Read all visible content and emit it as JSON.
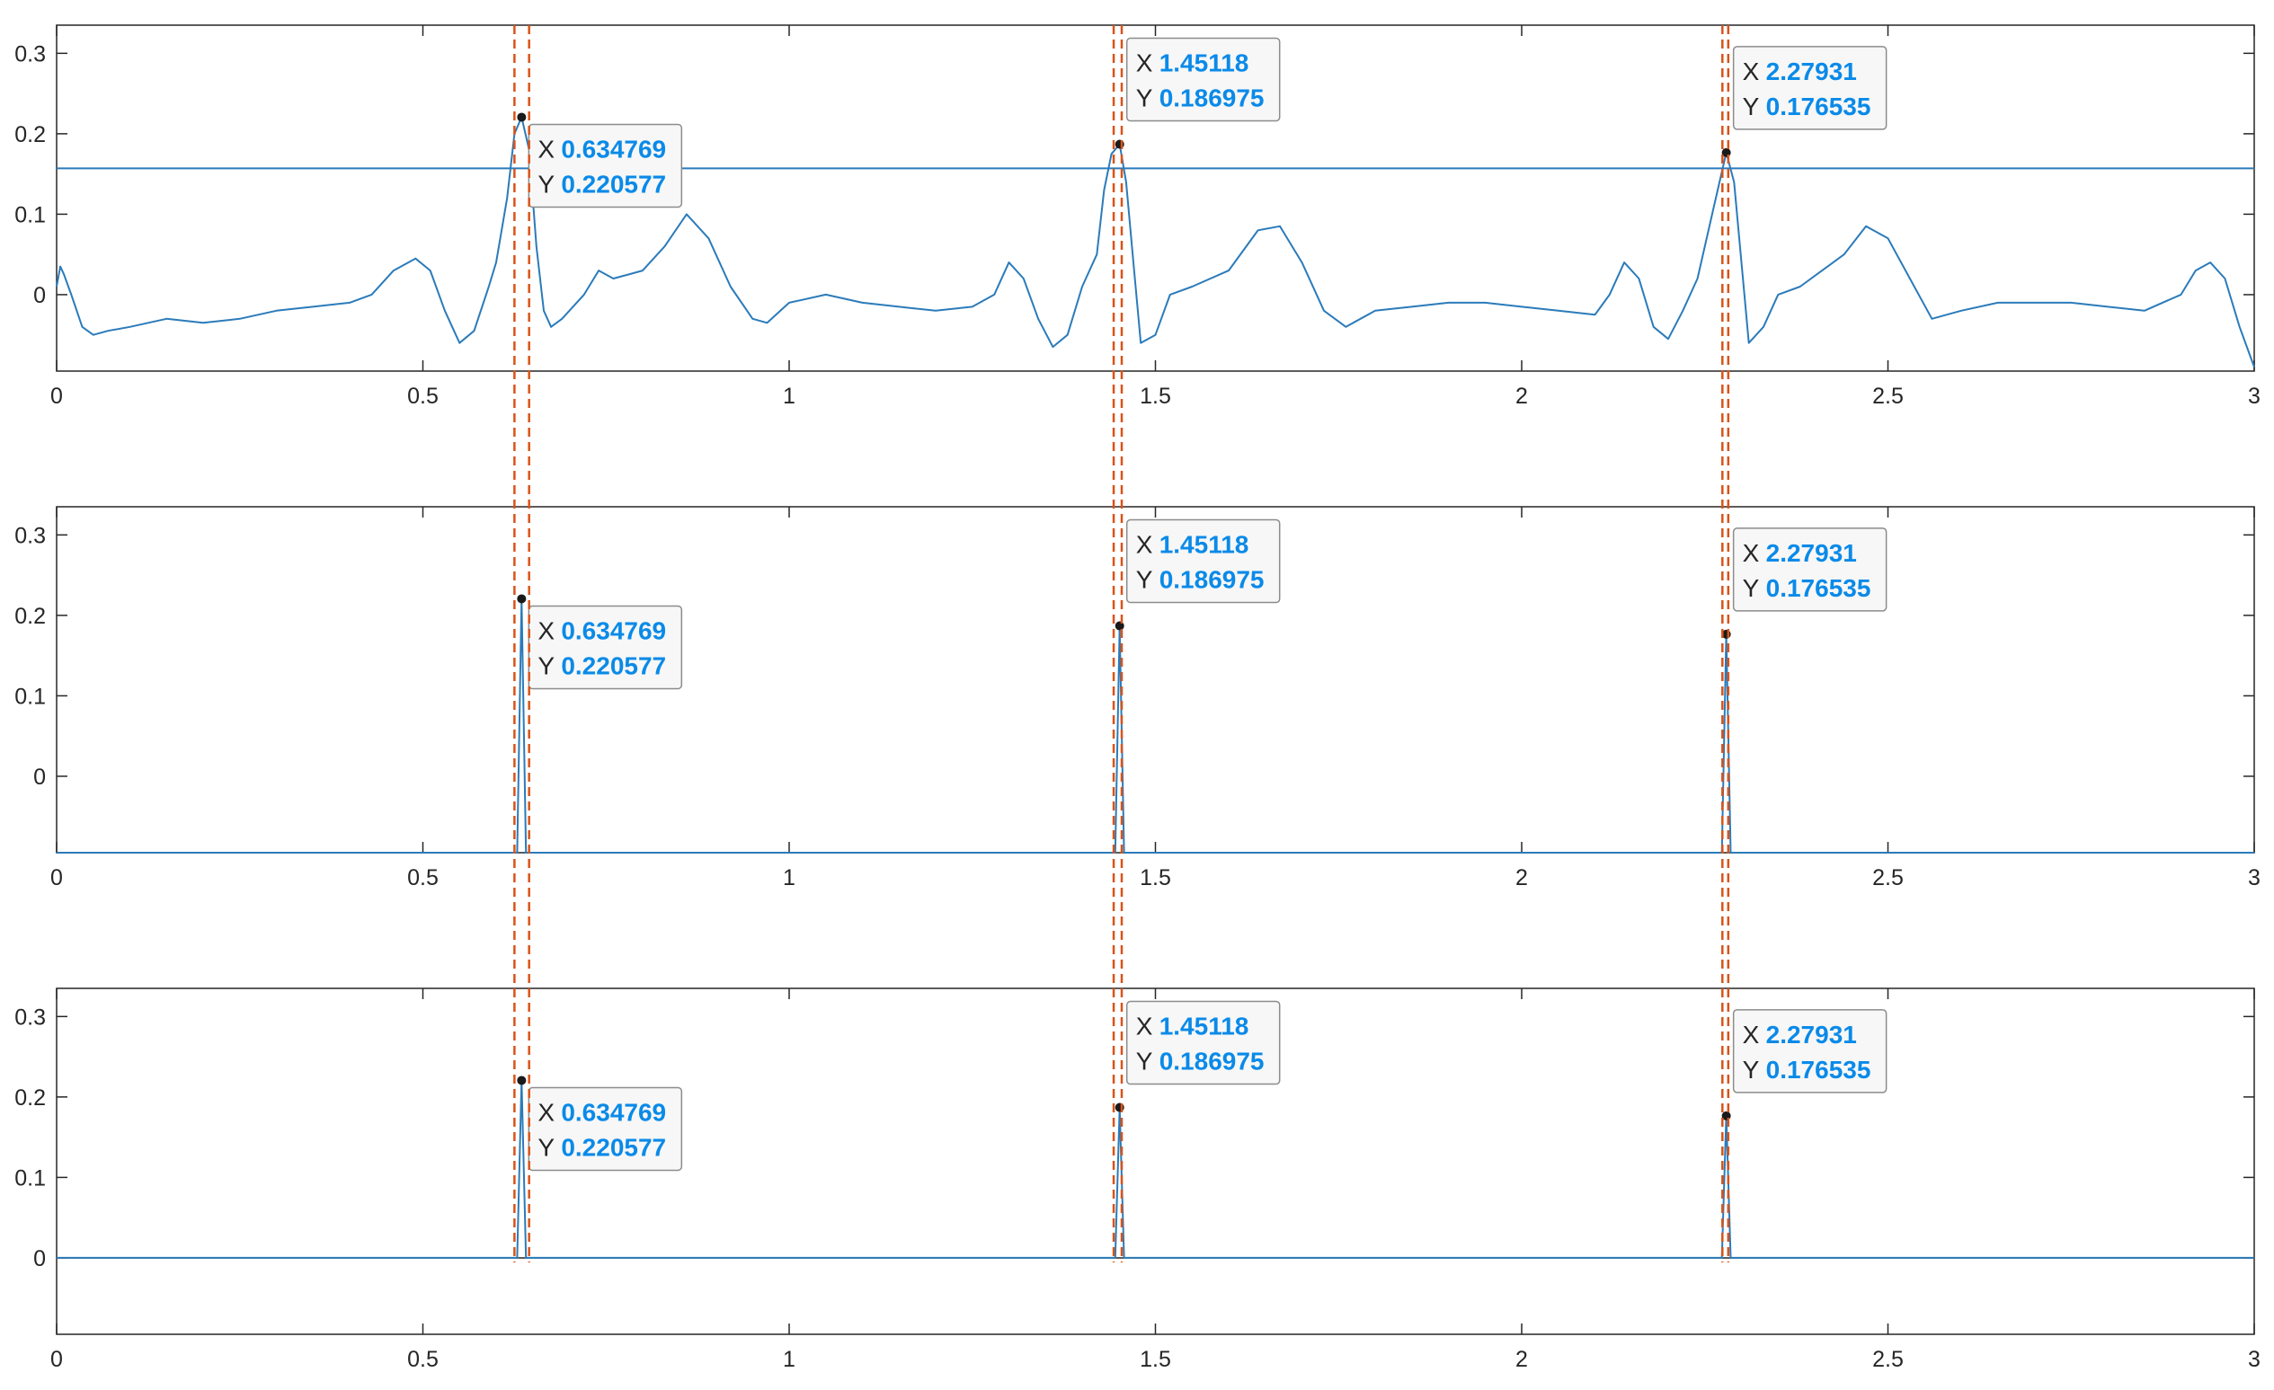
{
  "chart_data": [
    {
      "type": "line",
      "xlim": [
        0,
        3
      ],
      "ylim": [
        -0.095,
        0.335
      ],
      "xticks": [
        "0",
        "0.5",
        "1",
        "1.5",
        "2",
        "2.5",
        "3"
      ],
      "yticks": [
        "0.3",
        "0.2",
        "0.1",
        "0"
      ],
      "grid": false,
      "threshold": 0.157,
      "series_color": "#2b7bba",
      "marker_line_color": "#d95319",
      "series": [
        {
          "kind": "signal",
          "x": [
            0,
            0.005,
            0.01,
            0.02,
            0.035,
            0.05,
            0.07,
            0.1,
            0.15,
            0.2,
            0.25,
            0.3,
            0.35,
            0.4,
            0.43,
            0.46,
            0.49,
            0.51,
            0.53,
            0.55,
            0.57,
            0.59,
            0.6,
            0.615,
            0.625,
            0.634769,
            0.645,
            0.655,
            0.665,
            0.675,
            0.69,
            0.7,
            0.72,
            0.74,
            0.76,
            0.78,
            0.8,
            0.83,
            0.86,
            0.89,
            0.92,
            0.95,
            0.97,
            1.0,
            1.05,
            1.1,
            1.15,
            1.2,
            1.25,
            1.28,
            1.3,
            1.32,
            1.34,
            1.36,
            1.38,
            1.4,
            1.42,
            1.43,
            1.44,
            1.45118,
            1.46,
            1.47,
            1.48,
            1.5,
            1.52,
            1.55,
            1.6,
            1.64,
            1.67,
            1.7,
            1.73,
            1.76,
            1.8,
            1.85,
            1.9,
            1.95,
            2.0,
            2.05,
            2.1,
            2.12,
            2.14,
            2.16,
            2.18,
            2.2,
            2.22,
            2.24,
            2.26,
            2.27931,
            2.29,
            2.3,
            2.31,
            2.33,
            2.35,
            2.38,
            2.41,
            2.44,
            2.47,
            2.5,
            2.53,
            2.56,
            2.6,
            2.65,
            2.7,
            2.75,
            2.8,
            2.85,
            2.9,
            2.92,
            2.94,
            2.96,
            2.98,
            3.0
          ],
          "y": [
            0.01,
            0.035,
            0.025,
            0.0,
            -0.04,
            -0.05,
            -0.045,
            -0.04,
            -0.03,
            -0.035,
            -0.03,
            -0.02,
            -0.015,
            -0.01,
            0.0,
            0.03,
            0.045,
            0.03,
            -0.02,
            -0.06,
            -0.045,
            0.01,
            0.04,
            0.12,
            0.2,
            0.220577,
            0.18,
            0.06,
            -0.02,
            -0.04,
            -0.03,
            -0.02,
            0.0,
            0.03,
            0.02,
            0.025,
            0.03,
            0.06,
            0.1,
            0.07,
            0.01,
            -0.03,
            -0.035,
            -0.01,
            0.0,
            -0.01,
            -0.015,
            -0.02,
            -0.015,
            0.0,
            0.04,
            0.02,
            -0.03,
            -0.065,
            -0.05,
            0.01,
            0.05,
            0.13,
            0.175,
            0.186975,
            0.14,
            0.04,
            -0.06,
            -0.05,
            0.0,
            0.01,
            0.03,
            0.08,
            0.085,
            0.04,
            -0.02,
            -0.04,
            -0.02,
            -0.015,
            -0.01,
            -0.01,
            -0.015,
            -0.02,
            -0.025,
            0.0,
            0.04,
            0.02,
            -0.04,
            -0.055,
            -0.02,
            0.02,
            0.1,
            0.176535,
            0.14,
            0.04,
            -0.06,
            -0.04,
            0.0,
            0.01,
            0.03,
            0.05,
            0.085,
            0.07,
            0.02,
            -0.03,
            -0.02,
            -0.01,
            -0.01,
            -0.01,
            -0.015,
            -0.02,
            0.0,
            0.03,
            0.04,
            0.02,
            -0.04,
            -0.09
          ]
        }
      ],
      "datatips": [
        {
          "x_label": "X",
          "x": "0.634769",
          "y_label": "Y",
          "y": "0.220577",
          "px": 0.634769,
          "py": 0.220577
        },
        {
          "x_label": "X",
          "x": "1.45118",
          "y_label": "Y",
          "y": "0.186975",
          "px": 1.45118,
          "py": 0.186975
        },
        {
          "x_label": "X",
          "x": "2.27931",
          "y_label": "Y",
          "y": "0.176535",
          "px": 2.27931,
          "py": 0.176535
        }
      ],
      "marker_lines": [
        0.625,
        0.645,
        1.443,
        1.454,
        2.274,
        2.282
      ]
    },
    {
      "type": "line",
      "xlim": [
        0,
        3
      ],
      "ylim": [
        -0.095,
        0.335
      ],
      "xticks": [
        "0",
        "0.5",
        "1",
        "1.5",
        "2",
        "2.5",
        "3"
      ],
      "yticks": [
        "0.3",
        "0.2",
        "0.1",
        "0"
      ],
      "grid": false,
      "series_color": "#2b7bba",
      "marker_line_color": "#d95319",
      "series": [
        {
          "kind": "pulses",
          "baseline": -0.095,
          "pulses": [
            {
              "x": 0.634769,
              "y": 0.220577
            },
            {
              "x": 1.45118,
              "y": 0.186975
            },
            {
              "x": 2.27931,
              "y": 0.176535
            }
          ]
        }
      ],
      "datatips": [
        {
          "x_label": "X",
          "x": "0.634769",
          "y_label": "Y",
          "y": "0.220577",
          "px": 0.634769,
          "py": 0.220577
        },
        {
          "x_label": "X",
          "x": "1.45118",
          "y_label": "Y",
          "y": "0.186975",
          "px": 1.45118,
          "py": 0.186975
        },
        {
          "x_label": "X",
          "x": "2.27931",
          "y_label": "Y",
          "y": "0.176535",
          "px": 2.27931,
          "py": 0.176535
        }
      ],
      "marker_lines": [
        0.625,
        0.645,
        1.443,
        1.454,
        2.274,
        2.282
      ]
    },
    {
      "type": "line",
      "xlim": [
        0,
        3
      ],
      "ylim": [
        -0.095,
        0.335
      ],
      "xticks": [
        "0",
        "0.5",
        "1",
        "1.5",
        "2",
        "2.5",
        "3"
      ],
      "yticks": [
        "0.3",
        "0.2",
        "0.1",
        "0"
      ],
      "grid": false,
      "series_color": "#2b7bba",
      "marker_line_color": "#d95319",
      "zero_line": true,
      "series": [
        {
          "kind": "pulses",
          "baseline": 0,
          "pulses": [
            {
              "x": 0.634769,
              "y": 0.220577
            },
            {
              "x": 1.45118,
              "y": 0.186975
            },
            {
              "x": 2.27931,
              "y": 0.176535
            }
          ]
        }
      ],
      "datatips": [
        {
          "x_label": "X",
          "x": "0.634769",
          "y_label": "Y",
          "y": "0.220577",
          "px": 0.634769,
          "py": 0.220577
        },
        {
          "x_label": "X",
          "x": "1.45118",
          "y_label": "Y",
          "y": "0.186975",
          "px": 1.45118,
          "py": 0.186975
        },
        {
          "x_label": "X",
          "x": "2.27931",
          "y_label": "Y",
          "y": "0.176535",
          "px": 2.27931,
          "py": 0.176535
        }
      ],
      "marker_lines": [
        0.625,
        0.645,
        1.443,
        1.454,
        2.274,
        2.282
      ]
    }
  ]
}
